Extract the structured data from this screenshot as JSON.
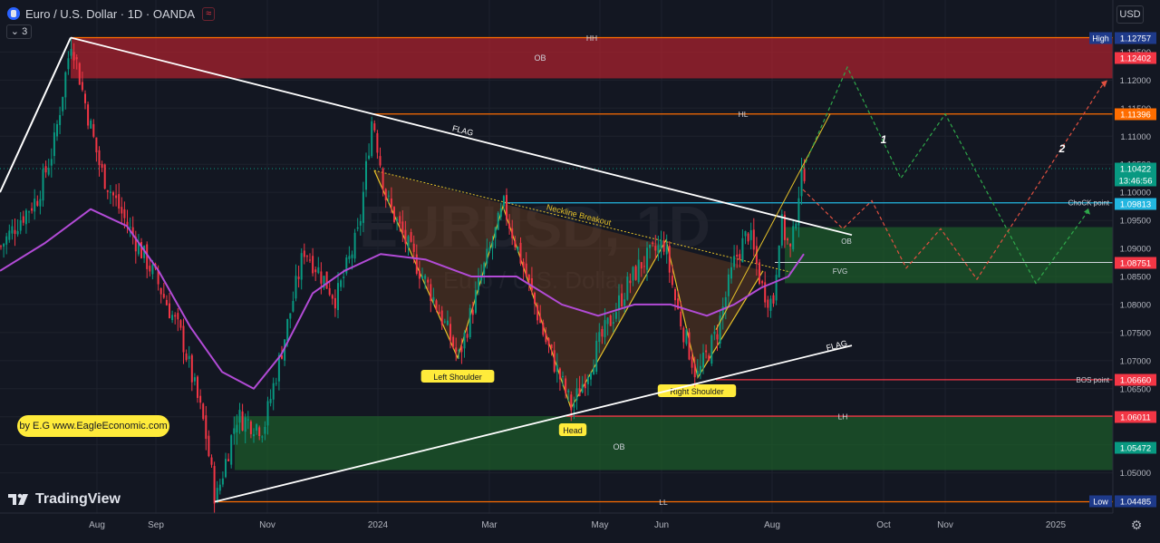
{
  "header": {
    "title": "Euro / U.S. Dollar · 1D · OANDA",
    "indicator_count": "3",
    "currency_button": "USD"
  },
  "credit": "by E.G  www.EagleEconomic.com",
  "brand": "TradingView",
  "watermark": {
    "line1": "EURUSD, 1D",
    "line2": "Euro / U.S. Dollar"
  },
  "colors": {
    "background": "#131722",
    "bull": "#089981",
    "bear": "#f23645",
    "ma": "#b24bd6",
    "orange_line": "#ff6d00",
    "red_line": "#f23645",
    "cyan_line": "#22b6e0",
    "pattern_yellow": "#e6c229",
    "zone_red": "#b2222e",
    "zone_green": "#1c5e2a"
  },
  "chart_data": {
    "type": "candlestick",
    "symbol": "EURUSD",
    "timeframe": "1D",
    "exchange": "OANDA",
    "x_axis_labels": [
      "Aug",
      "Sep",
      "Nov",
      "2024",
      "Mar",
      "May",
      "Jun",
      "Aug",
      "Oct",
      "Nov",
      "2025"
    ],
    "y_axis_ticks": [
      1.125,
      1.12,
      1.115,
      1.11,
      1.105,
      1.1,
      1.095,
      1.09,
      1.085,
      1.08,
      1.075,
      1.07,
      1.065,
      1.06,
      1.055,
      1.05
    ],
    "ylim": [
      1.0445,
      1.1296
    ],
    "price_path": [
      [
        -10,
        1.088
      ],
      [
        20,
        1.095
      ],
      [
        40,
        1.099
      ],
      [
        58,
        1.108
      ],
      [
        78,
        1.1276
      ],
      [
        90,
        1.118
      ],
      [
        110,
        1.104
      ],
      [
        140,
        1.094
      ],
      [
        170,
        1.085
      ],
      [
        200,
        1.074
      ],
      [
        225,
        1.058
      ],
      [
        237,
        1.0449
      ],
      [
        260,
        1.06
      ],
      [
        290,
        1.058
      ],
      [
        310,
        1.072
      ],
      [
        335,
        1.09
      ],
      [
        370,
        1.081
      ],
      [
        395,
        1.093
      ],
      [
        410,
        1.1139
      ],
      [
        425,
        1.099
      ],
      [
        450,
        1.09
      ],
      [
        475,
        1.082
      ],
      [
        505,
        1.0705
      ],
      [
        530,
        1.085
      ],
      [
        555,
        1.0975
      ],
      [
        580,
        1.085
      ],
      [
        600,
        1.074
      ],
      [
        630,
        1.0615
      ],
      [
        660,
        1.073
      ],
      [
        690,
        1.083
      ],
      [
        705,
        1.087
      ],
      [
        732,
        1.091
      ],
      [
        745,
        1.08
      ],
      [
        768,
        1.067
      ],
      [
        790,
        1.075
      ],
      [
        810,
        1.088
      ],
      [
        825,
        1.093
      ],
      [
        840,
        1.083
      ],
      [
        852,
        1.08
      ],
      [
        860,
        1.095
      ],
      [
        872,
        1.089
      ],
      [
        880,
        1.1
      ],
      [
        887,
        1.1042
      ]
    ],
    "moving_average_path": [
      [
        0,
        1.086
      ],
      [
        50,
        1.091
      ],
      [
        100,
        1.097
      ],
      [
        140,
        1.094
      ],
      [
        175,
        1.086
      ],
      [
        210,
        1.076
      ],
      [
        245,
        1.068
      ],
      [
        280,
        1.065
      ],
      [
        310,
        1.071
      ],
      [
        345,
        1.082
      ],
      [
        380,
        1.086
      ],
      [
        420,
        1.089
      ],
      [
        470,
        1.088
      ],
      [
        520,
        1.085
      ],
      [
        570,
        1.085
      ],
      [
        620,
        1.08
      ],
      [
        660,
        1.078
      ],
      [
        700,
        1.08
      ],
      [
        740,
        1.08
      ],
      [
        780,
        1.078
      ],
      [
        810,
        1.08
      ],
      [
        840,
        1.083
      ],
      [
        870,
        1.085
      ],
      [
        887,
        1.089
      ]
    ],
    "price_labels": [
      {
        "label": "High",
        "value": "1.12757",
        "color": "#1e3a8a"
      },
      {
        "label": "",
        "value": "1.12402",
        "color": "#f23645"
      },
      {
        "label": "",
        "value": "1.11396",
        "color": "#ff6d00"
      },
      {
        "label": "",
        "value": "1.10422",
        "color": "#089981"
      },
      {
        "label": "",
        "value": "13:46:56",
        "color": "#089981"
      },
      {
        "label": "",
        "value": "1.09813",
        "color": "#22b6e0"
      },
      {
        "label": "",
        "value": "1.08751",
        "color": "#f23645"
      },
      {
        "label": "",
        "value": "1.06660",
        "color": "#f23645"
      },
      {
        "label": "",
        "value": "1.06011",
        "color": "#f23645"
      },
      {
        "label": "",
        "value": "1.05472",
        "color": "#089981"
      },
      {
        "label": "Low",
        "value": "1.04485",
        "color": "#1e3a8a"
      }
    ],
    "levels": [
      {
        "name": "HH",
        "price": 1.12757,
        "x_start": 78,
        "color": "#ff6d00"
      },
      {
        "name": "HL",
        "price": 1.11396,
        "x_start": 410,
        "color": "#ff6d00"
      },
      {
        "name": "ChoCK point",
        "price": 1.09813,
        "x_start": 555,
        "color": "#22b6e0"
      },
      {
        "name": "BOS point",
        "price": 1.0666,
        "x_start": 790,
        "color": "#f23645"
      },
      {
        "name": "LH",
        "price": 1.06011,
        "x_start": 625,
        "color": "#f23645"
      },
      {
        "name": "LL",
        "price": 1.04485,
        "x_start": 237,
        "color": "#ff6d00"
      },
      {
        "name": "",
        "price": 1.08751,
        "x_start": 855,
        "color": "#d1d4dc"
      }
    ],
    "zones": [
      {
        "name": "OB",
        "top": 1.1276,
        "bottom": 1.1203,
        "x_start": 78,
        "color": "#b2222e"
      },
      {
        "name": "OB",
        "top": 1.0938,
        "bottom": 1.0875,
        "x_start": 866,
        "color": "#1c5e2a"
      },
      {
        "name": "FVG",
        "top": 1.0875,
        "bottom": 1.0838,
        "x_start": 866,
        "color": "#1c5e2a"
      },
      {
        "name": "OB",
        "top": 1.0601,
        "bottom": 1.0505,
        "x_start": 259,
        "color": "#1c5e2a"
      }
    ],
    "annotations": [
      "FLAG",
      "FLAG",
      "Neckline Breakout",
      "Left Shoulder",
      "Head",
      "Right Shoulder",
      "1",
      "2",
      "OB",
      "FVG",
      "OB",
      "OB"
    ]
  }
}
